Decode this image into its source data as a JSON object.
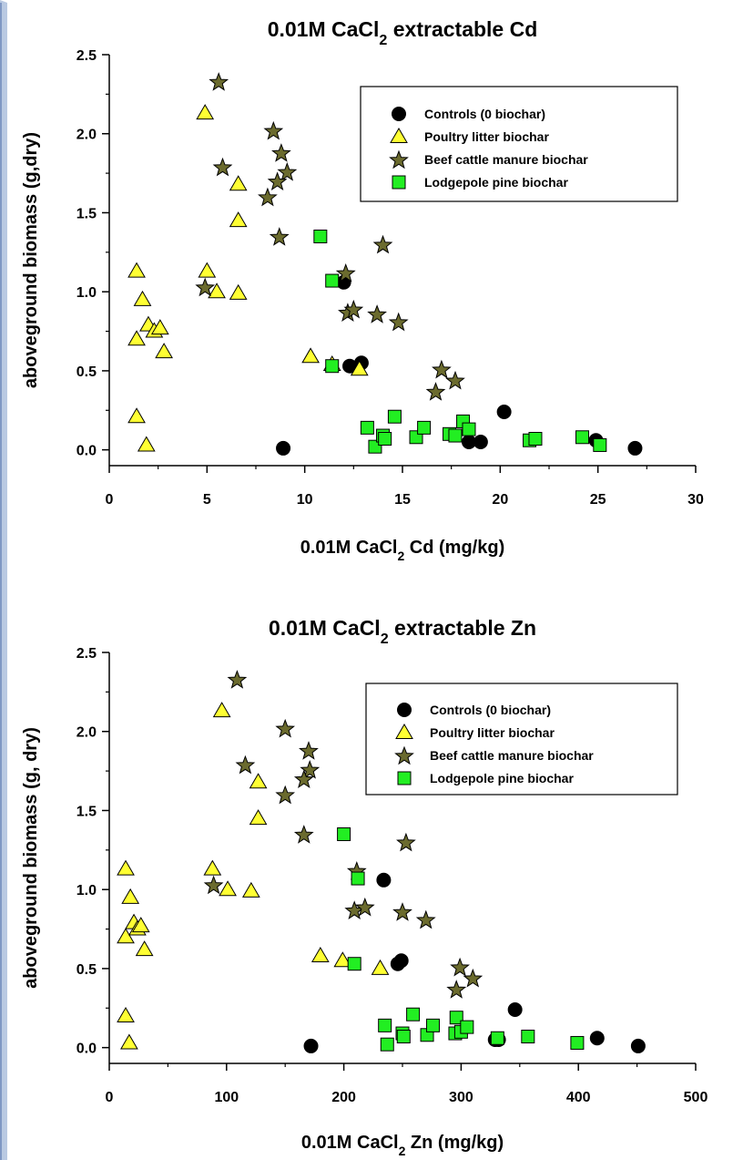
{
  "colors": {
    "control": "#000000",
    "poultry": "#ffff33",
    "beef": "#6b6b2e",
    "pine": "#22ee22"
  },
  "chart_data": [
    {
      "type": "scatter",
      "title": "0.01M CaCl",
      "title_sub": "2",
      "title_rest": " extractable Cd",
      "xlabel": "0.01M CaCl",
      "xlabel_sub": "2",
      "xlabel_rest": " Cd (mg/kg)",
      "ylabel": "aboveground biomass (g,dry)",
      "xlim": [
        0,
        30
      ],
      "ylim": [
        -0.1,
        2.5
      ],
      "xticks": [
        "0",
        "5",
        "10",
        "15",
        "20",
        "25",
        "30"
      ],
      "yticks": [
        "0.0",
        "0.5",
        "1.0",
        "1.5",
        "2.0",
        "2.5"
      ],
      "legend_position": "top-right",
      "series": [
        {
          "name": "Controls (0 biochar)",
          "marker": "circle",
          "points": [
            [
              8.9,
              0.01
            ],
            [
              12.0,
              1.06
            ],
            [
              12.3,
              0.53
            ],
            [
              12.9,
              0.55
            ],
            [
              18.4,
              0.05
            ],
            [
              19.0,
              0.05
            ],
            [
              20.2,
              0.24
            ],
            [
              24.9,
              0.06
            ],
            [
              26.9,
              0.01
            ]
          ]
        },
        {
          "name": "Poultry litter biochar",
          "marker": "triangle",
          "points": [
            [
              1.4,
              1.13
            ],
            [
              1.7,
              0.95
            ],
            [
              1.4,
              0.7
            ],
            [
              2.0,
              0.79
            ],
            [
              2.3,
              0.75
            ],
            [
              2.6,
              0.77
            ],
            [
              2.8,
              0.62
            ],
            [
              1.4,
              0.21
            ],
            [
              1.9,
              0.03
            ],
            [
              4.9,
              2.13
            ],
            [
              5.0,
              1.13
            ],
            [
              5.5,
              1.0
            ],
            [
              6.6,
              1.68
            ],
            [
              6.6,
              1.45
            ],
            [
              6.6,
              0.99
            ],
            [
              10.3,
              0.59
            ],
            [
              11.4,
              0.54
            ],
            [
              12.8,
              0.51
            ]
          ]
        },
        {
          "name": "Beef cattle manure biochar",
          "marker": "star",
          "points": [
            [
              5.6,
              2.33
            ],
            [
              4.9,
              1.03
            ],
            [
              5.8,
              1.79
            ],
            [
              8.4,
              2.02
            ],
            [
              8.8,
              1.88
            ],
            [
              9.1,
              1.76
            ],
            [
              8.6,
              1.7
            ],
            [
              8.1,
              1.6
            ],
            [
              8.7,
              1.35
            ],
            [
              12.1,
              1.12
            ],
            [
              12.2,
              0.87
            ],
            [
              12.5,
              0.89
            ],
            [
              14.0,
              1.3
            ],
            [
              13.7,
              0.86
            ],
            [
              14.8,
              0.81
            ],
            [
              17.0,
              0.51
            ],
            [
              16.7,
              0.37
            ],
            [
              17.7,
              0.44
            ]
          ]
        },
        {
          "name": "Lodgepole pine biochar",
          "marker": "square",
          "points": [
            [
              10.8,
              1.35
            ],
            [
              11.4,
              1.07
            ],
            [
              11.4,
              0.53
            ],
            [
              13.2,
              0.14
            ],
            [
              13.6,
              0.02
            ],
            [
              14.0,
              0.09
            ],
            [
              14.1,
              0.07
            ],
            [
              14.6,
              0.21
            ],
            [
              15.7,
              0.08
            ],
            [
              16.1,
              0.14
            ],
            [
              17.4,
              0.1
            ],
            [
              17.7,
              0.09
            ],
            [
              18.1,
              0.18
            ],
            [
              18.4,
              0.13
            ],
            [
              21.5,
              0.06
            ],
            [
              21.8,
              0.07
            ],
            [
              24.2,
              0.08
            ],
            [
              25.1,
              0.03
            ]
          ]
        }
      ]
    },
    {
      "type": "scatter",
      "title": "0.01M CaCl",
      "title_sub": "2",
      "title_rest": " extractable Zn",
      "xlabel": "0.01M CaCl",
      "xlabel_sub": "2",
      "xlabel_rest": " Zn (mg/kg)",
      "ylabel": "aboveground biomass (g, dry)",
      "xlim": [
        0,
        500
      ],
      "ylim": [
        -0.1,
        2.5
      ],
      "xticks": [
        "0",
        "100",
        "200",
        "300",
        "400",
        "500"
      ],
      "yticks": [
        "0.0",
        "0.5",
        "1.0",
        "1.5",
        "2.0",
        "2.5"
      ],
      "legend_position": "top-right",
      "series": [
        {
          "name": "Controls (0 biochar)",
          "marker": "circle",
          "points": [
            [
              172,
              0.01
            ],
            [
              234,
              1.06
            ],
            [
              246,
              0.53
            ],
            [
              249,
              0.55
            ],
            [
              329,
              0.05
            ],
            [
              332,
              0.05
            ],
            [
              346,
              0.24
            ],
            [
              416,
              0.06
            ],
            [
              451,
              0.01
            ]
          ]
        },
        {
          "name": "Poultry litter biochar",
          "marker": "triangle",
          "points": [
            [
              14,
              1.13
            ],
            [
              18,
              0.95
            ],
            [
              14,
              0.7
            ],
            [
              21,
              0.79
            ],
            [
              24,
              0.75
            ],
            [
              27,
              0.77
            ],
            [
              30,
              0.62
            ],
            [
              14,
              0.2
            ],
            [
              17,
              0.03
            ],
            [
              96,
              2.13
            ],
            [
              88,
              1.13
            ],
            [
              101,
              1.0
            ],
            [
              121,
              0.99
            ],
            [
              127,
              1.68
            ],
            [
              127,
              1.45
            ],
            [
              180,
              0.58
            ],
            [
              199,
              0.55
            ],
            [
              231,
              0.5
            ]
          ]
        },
        {
          "name": "Beef cattle manure biochar",
          "marker": "star",
          "points": [
            [
              109,
              2.33
            ],
            [
              89,
              1.03
            ],
            [
              116,
              1.79
            ],
            [
              150,
              2.02
            ],
            [
              170,
              1.88
            ],
            [
              171,
              1.76
            ],
            [
              166,
              1.7
            ],
            [
              150,
              1.6
            ],
            [
              166,
              1.35
            ],
            [
              211,
              1.12
            ],
            [
              209,
              0.87
            ],
            [
              218,
              0.89
            ],
            [
              253,
              1.3
            ],
            [
              250,
              0.86
            ],
            [
              270,
              0.81
            ],
            [
              299,
              0.51
            ],
            [
              296,
              0.37
            ],
            [
              310,
              0.44
            ]
          ]
        },
        {
          "name": "Lodgepole pine biochar",
          "marker": "square",
          "points": [
            [
              200,
              1.35
            ],
            [
              212,
              1.07
            ],
            [
              209,
              0.53
            ],
            [
              235,
              0.14
            ],
            [
              237,
              0.02
            ],
            [
              250,
              0.09
            ],
            [
              251,
              0.07
            ],
            [
              259,
              0.21
            ],
            [
              271,
              0.08
            ],
            [
              276,
              0.14
            ],
            [
              295,
              0.09
            ],
            [
              296,
              0.19
            ],
            [
              300,
              0.1
            ],
            [
              305,
              0.13
            ],
            [
              331,
              0.06
            ],
            [
              357,
              0.07
            ],
            [
              399,
              0.03
            ]
          ]
        }
      ]
    }
  ]
}
